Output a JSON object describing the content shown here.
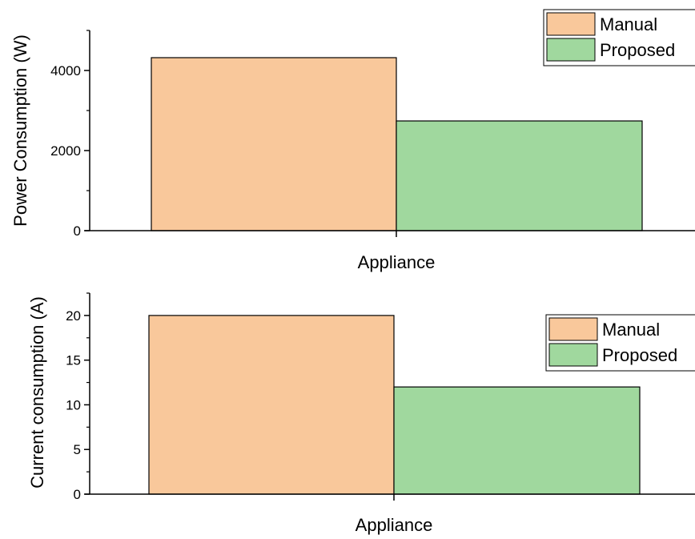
{
  "chart_data": [
    {
      "type": "bar",
      "categories": [
        "Appliance"
      ],
      "series": [
        {
          "name": "Manual",
          "values": [
            4320
          ],
          "color": "#F9C89B"
        },
        {
          "name": "Proposed",
          "values": [
            2740
          ],
          "color": "#A0D89E"
        }
      ],
      "xlabel": "Appliance",
      "ylabel": "Power Consumption (W)",
      "ylim": [
        0,
        5000
      ],
      "yticks": [
        0,
        2000,
        4000
      ],
      "grid": false,
      "legend_position": "top-right"
    },
    {
      "type": "bar",
      "categories": [
        "Appliance"
      ],
      "series": [
        {
          "name": "Manual",
          "values": [
            20
          ],
          "color": "#F9C89B"
        },
        {
          "name": "Proposed",
          "values": [
            12
          ],
          "color": "#A0D89E"
        }
      ],
      "xlabel": "Appliance",
      "ylabel": "Current consumption (A)",
      "ylim": [
        0,
        22.5
      ],
      "yticks": [
        0,
        5,
        10,
        15,
        20
      ],
      "grid": false,
      "legend_position": "right"
    }
  ]
}
